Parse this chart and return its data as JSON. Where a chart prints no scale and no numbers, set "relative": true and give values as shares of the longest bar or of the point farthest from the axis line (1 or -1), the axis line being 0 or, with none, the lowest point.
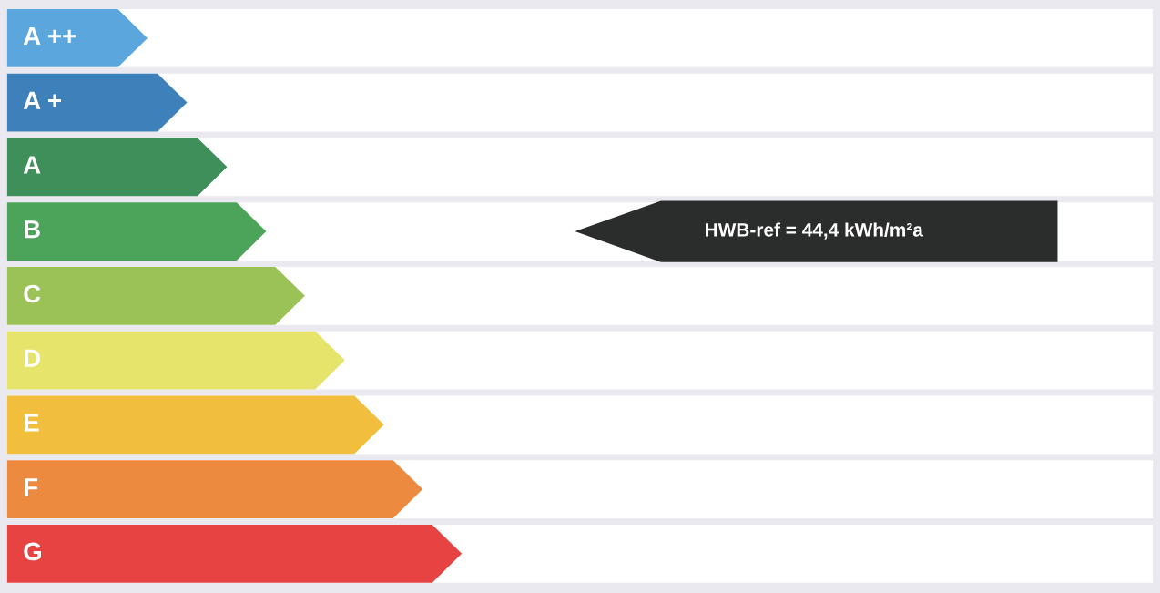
{
  "chart_data": {
    "type": "bar",
    "orientation": "horizontal",
    "relative": true,
    "categories": [
      "A ++",
      "A +",
      "A",
      "B",
      "C",
      "D",
      "E",
      "F",
      "G"
    ],
    "values": [
      0.309,
      0.396,
      0.484,
      0.57,
      0.655,
      0.743,
      0.829,
      0.914,
      1.0
    ],
    "colors": [
      "#5ba6dc",
      "#3e80b9",
      "#3f8f5b",
      "#4ca35a",
      "#9ac257",
      "#e7e46c",
      "#f1bf3d",
      "#ec8a3f",
      "#e64342"
    ],
    "annotations": [
      "HWB-ref = 44,4 kWh/m²a"
    ]
  }
}
